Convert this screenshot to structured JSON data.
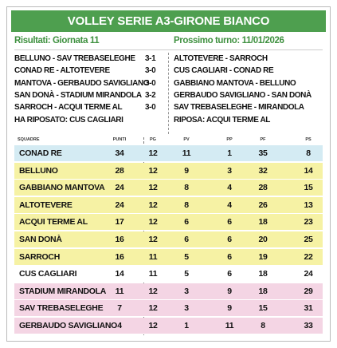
{
  "header": {
    "title": "VOLLEY SERIE A3-GIRONE BIANCO"
  },
  "results": {
    "title": "Risultati: Giornata 11",
    "matches": [
      {
        "match": "BELLUNO - SAV TREBASELEGHE",
        "score": "3-1"
      },
      {
        "match": "CONAD RE - ALTOTEVERE",
        "score": "3-0"
      },
      {
        "match": "MANTOVA - GERBAUDO SAVIGLIANO",
        "score": "3-0"
      },
      {
        "match": "SAN DONÀ - STADIUM MIRANDOLA",
        "score": "3-2"
      },
      {
        "match": "SARROCH - ACQUI TERME AL",
        "score": "3-0"
      }
    ],
    "rest": "HA RIPOSATO: CUS CAGLIARI"
  },
  "next": {
    "title": "Prossimo turno: 11/01/2026",
    "matches": [
      "ALTOTEVERE - SARROCH",
      "CUS CAGLIARI - CONAD RE",
      "GABBIANO MANTOVA - BELLUNO",
      "GERBAUDO SAVIGLIANO - SAN DONÀ",
      "SAV TREBASELEGHE - MIRANDOLA"
    ],
    "rest": "RIPOSA: ACQUI TERME AL"
  },
  "table": {
    "columns": [
      "SQUADRE",
      "PUNTI",
      "PG",
      "PV",
      "PP",
      "PF",
      "PS"
    ],
    "rows": [
      [
        "CONAD RE",
        34,
        12,
        11,
        1,
        35,
        8
      ],
      [
        "BELLUNO",
        28,
        12,
        9,
        3,
        32,
        14
      ],
      [
        "GABBIANO MANTOVA",
        24,
        12,
        8,
        4,
        28,
        15
      ],
      [
        "ALTOTEVERE",
        24,
        12,
        8,
        4,
        26,
        13
      ],
      [
        "ACQUI TERME AL",
        17,
        12,
        6,
        6,
        18,
        23
      ],
      [
        "SAN DONÀ",
        16,
        12,
        6,
        6,
        20,
        25
      ],
      [
        "SARROCH",
        16,
        11,
        5,
        6,
        19,
        22
      ],
      [
        "CUS CAGLIARI",
        14,
        11,
        5,
        6,
        18,
        24
      ],
      [
        "STADIUM MIRANDOLA",
        11,
        12,
        3,
        9,
        18,
        29
      ],
      [
        "SAV TREBASELEGHE",
        7,
        12,
        3,
        9,
        15,
        31
      ],
      [
        "GERBAUDO SAVIGLIANO",
        4,
        12,
        1,
        11,
        8,
        33
      ]
    ]
  }
}
